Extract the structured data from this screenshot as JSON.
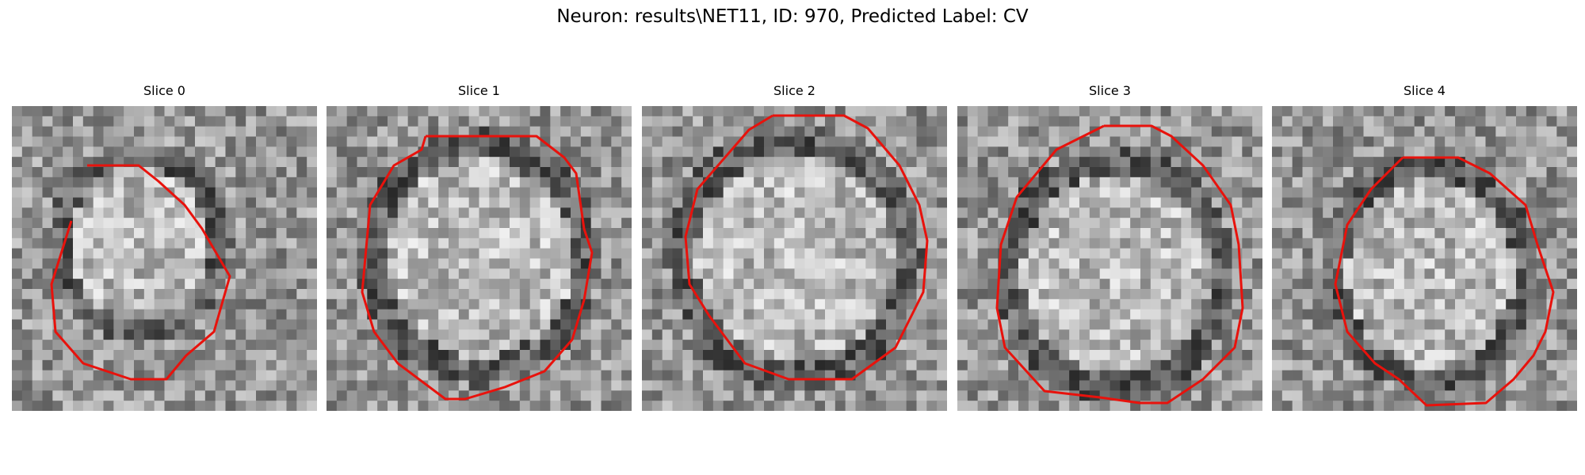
{
  "figure": {
    "title": "Neuron: results\\NET11, ID: 970, Predicted Label: CV"
  },
  "panels": [
    {
      "title": "Slice 0"
    },
    {
      "title": "Slice 1"
    },
    {
      "title": "Slice 2"
    },
    {
      "title": "Slice 3"
    },
    {
      "title": "Slice 4"
    }
  ],
  "colors": {
    "contour": "#e8120c",
    "colormap": "gray"
  }
}
